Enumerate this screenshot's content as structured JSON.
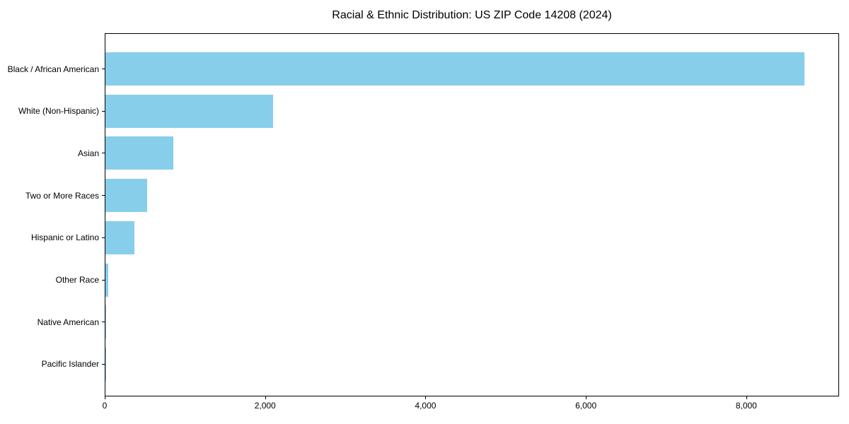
{
  "title": "Racial & Ethnic Distribution: US ZIP Code 14208 (2024)",
  "chart_data": {
    "type": "bar",
    "orientation": "horizontal",
    "title": "Racial & Ethnic Distribution: US ZIP Code 14208 (2024)",
    "xlabel": "",
    "ylabel": "",
    "categories": [
      "Black / African American",
      "White (Non-Hispanic)",
      "Asian",
      "Two or More Races",
      "Hispanic or Latino",
      "Other Race",
      "Native American",
      "Pacific Islander"
    ],
    "values": [
      8720,
      2090,
      850,
      520,
      360,
      35,
      10,
      4
    ],
    "xlim": [
      0,
      9157
    ],
    "x_ticks": [
      0,
      2000,
      4000,
      6000,
      8000
    ],
    "x_tick_labels": [
      "0",
      "2,000",
      "4,000",
      "6,000",
      "8,000"
    ],
    "bar_color": "#87CEEB",
    "axis_color": "#000000",
    "grid": false,
    "legend": null
  }
}
